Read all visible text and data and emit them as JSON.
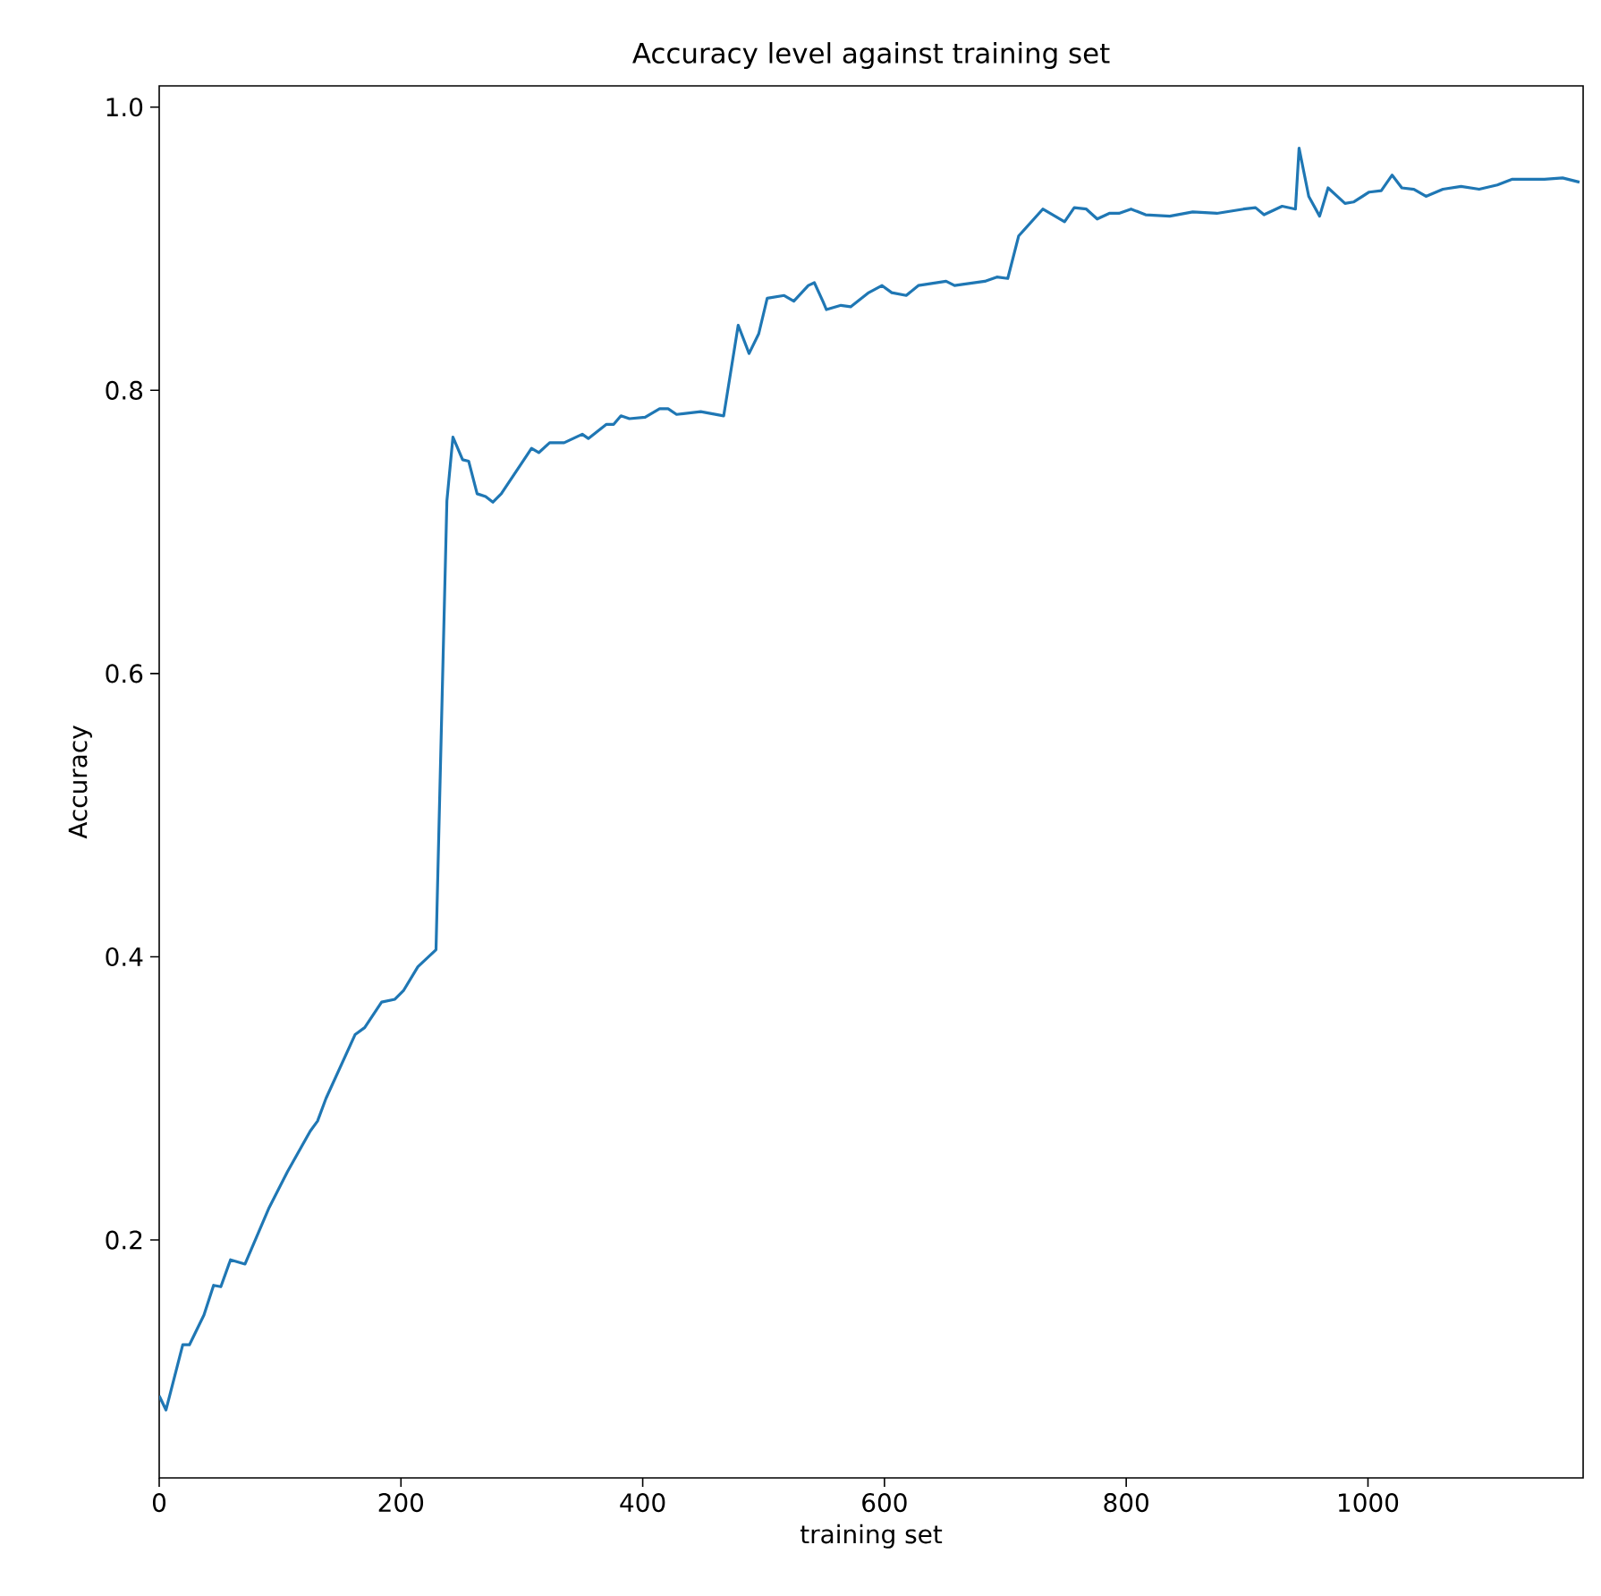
{
  "chart_data": {
    "type": "line",
    "title": "Accuracy level against  training set",
    "xlabel": "training set",
    "ylabel": "Accuracy",
    "xlim": [
      0,
      1178
    ],
    "ylim": [
      0.032,
      1.015
    ],
    "xticks": [
      0,
      200,
      400,
      600,
      800,
      1000
    ],
    "yticks": [
      0.2,
      0.4,
      0.6,
      0.8,
      {
        "value": 1,
        "label": "1.0"
      }
    ],
    "grid": false,
    "series": [
      {
        "color": "#1f77b4",
        "x": [
          0,
          5.6,
          19.5,
          25,
          37,
          45,
          51,
          59,
          71,
          91,
          106,
          125,
          131,
          138,
          162,
          170,
          184,
          195,
          202,
          214,
          229,
          238,
          243,
          251,
          256,
          263,
          270,
          276,
          283,
          308,
          314,
          323,
          335,
          350,
          355,
          370,
          376,
          382,
          389,
          402,
          414,
          421,
          428,
          448,
          467,
          479,
          488,
          496,
          503,
          517,
          525,
          537,
          542,
          549,
          552,
          564,
          572,
          587,
          598,
          606,
          618,
          628,
          651,
          658,
          683,
          693,
          702,
          711,
          731,
          749,
          757,
          767,
          776,
          786,
          794,
          804,
          816,
          836,
          855,
          875,
          897,
          907,
          914,
          929,
          940,
          943,
          951,
          960,
          967,
          981,
          988,
          1001,
          1011,
          1020,
          1028,
          1038,
          1048,
          1062,
          1077,
          1092,
          1107,
          1119,
          1146,
          1161,
          1175
        ],
        "values": [
          0.09,
          0.08,
          0.126,
          0.126,
          0.147,
          0.168,
          0.167,
          0.186,
          0.183,
          0.223,
          0.248,
          0.277,
          0.284,
          0.3,
          0.345,
          0.35,
          0.368,
          0.37,
          0.376,
          0.393,
          0.405,
          0.722,
          0.767,
          0.751,
          0.75,
          0.727,
          0.725,
          0.721,
          0.727,
          0.759,
          0.756,
          0.763,
          0.763,
          0.769,
          0.766,
          0.776,
          0.776,
          0.782,
          0.78,
          0.781,
          0.787,
          0.787,
          0.783,
          0.785,
          0.782,
          0.846,
          0.826,
          0.84,
          0.865,
          0.867,
          0.863,
          0.874,
          0.876,
          0.863,
          0.857,
          0.86,
          0.859,
          0.869,
          0.874,
          0.869,
          0.867,
          0.874,
          0.877,
          0.874,
          0.877,
          0.88,
          0.879,
          0.909,
          0.928,
          0.919,
          0.929,
          0.928,
          0.921,
          0.925,
          0.925,
          0.928,
          0.924,
          0.923,
          0.926,
          0.925,
          0.928,
          0.929,
          0.924,
          0.93,
          0.928,
          0.971,
          0.937,
          0.923,
          0.943,
          0.932,
          0.933,
          0.94,
          0.941,
          0.952,
          0.943,
          0.942,
          0.937,
          0.942,
          0.944,
          0.942,
          0.945,
          0.949,
          0.949,
          0.95,
          0.947
        ]
      }
    ]
  }
}
